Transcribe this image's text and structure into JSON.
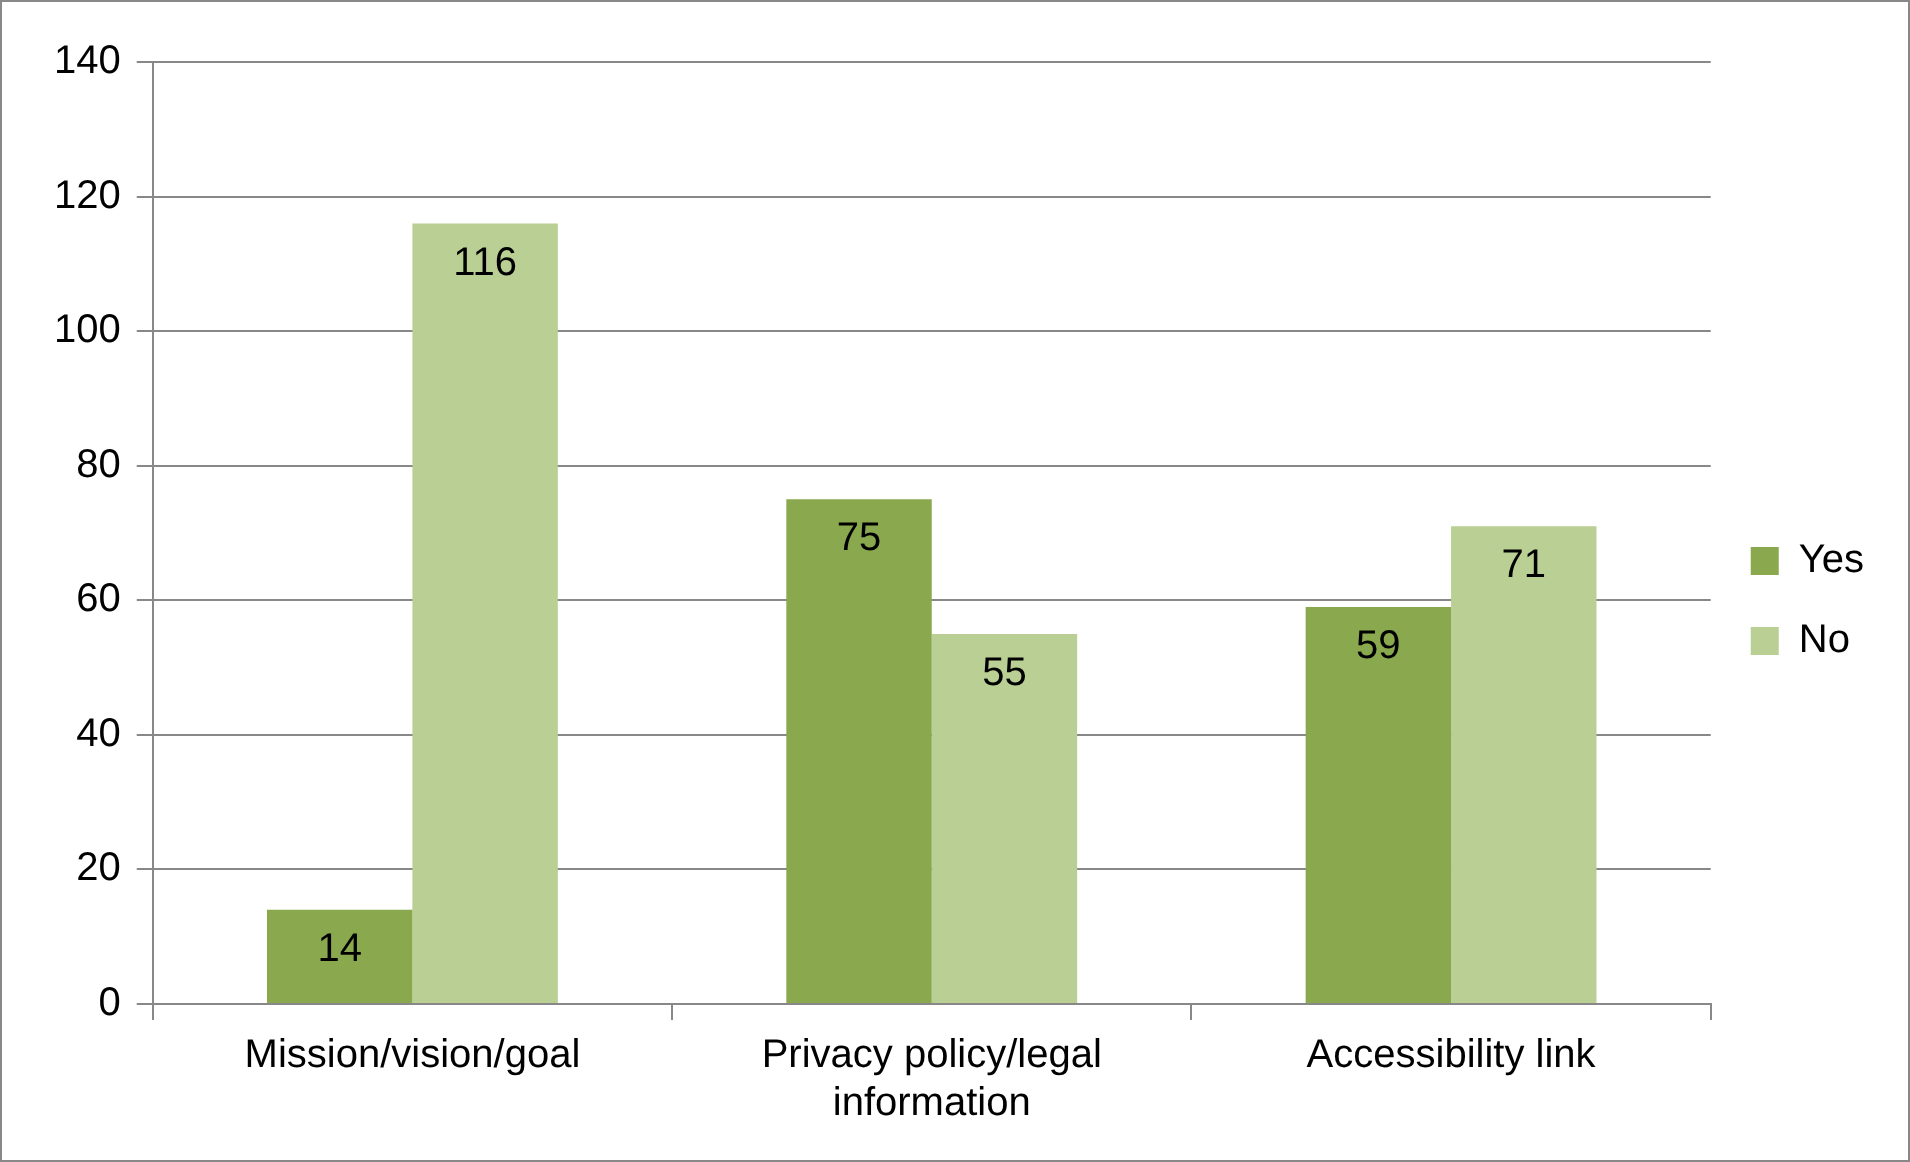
{
  "chart_data": {
    "type": "bar",
    "categories": [
      "Mission/vision/goal",
      "Privacy policy/legal information",
      "Accessibility link"
    ],
    "series": [
      {
        "name": "Yes",
        "color": "#8aa84e",
        "values": [
          14,
          75,
          59
        ]
      },
      {
        "name": "No",
        "color": "#b9cf94",
        "values": [
          116,
          55,
          71
        ]
      }
    ],
    "ylim": [
      0,
      140
    ],
    "yticks": [
      0,
      20,
      40,
      60,
      80,
      100,
      120,
      140
    ],
    "grid": "y",
    "legend": "right",
    "data_labels": true
  }
}
